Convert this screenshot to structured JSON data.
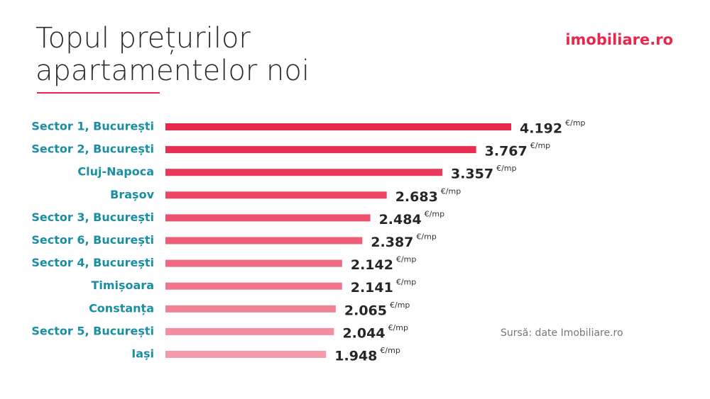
{
  "chart_data": {
    "type": "bar",
    "orientation": "horizontal",
    "title_lines": [
      "Topul prețurilor",
      "apartamentelor noi"
    ],
    "brand": "imobiliare.ro",
    "source": "Sursă: date Imobiliare.ro",
    "unit": "€/mp",
    "categories": [
      "Sector 1, București",
      "Sector 2, București",
      "Cluj-Napoca",
      "Brașov",
      "Sector 3, București",
      "Sector 6, București",
      "Sector 4, București",
      "Timișoara",
      "Constanța",
      "Sector 5, București",
      "Iași"
    ],
    "values": [
      4192,
      3767,
      3357,
      2683,
      2484,
      2387,
      2142,
      2141,
      2065,
      2044,
      1948
    ],
    "value_labels": [
      "4.192",
      "3.767",
      "3.357",
      "2.683",
      "2.484",
      "2.387",
      "2.142",
      "2.141",
      "2.065",
      "2.044",
      "1.948"
    ],
    "colors": [
      "#e8274a",
      "#e92f51",
      "#ea3a5a",
      "#ec4663",
      "#ed526d",
      "#ee5d76",
      "#ef6980",
      "#f0758a",
      "#f18294",
      "#f28e9f",
      "#f39baa"
    ]
  }
}
